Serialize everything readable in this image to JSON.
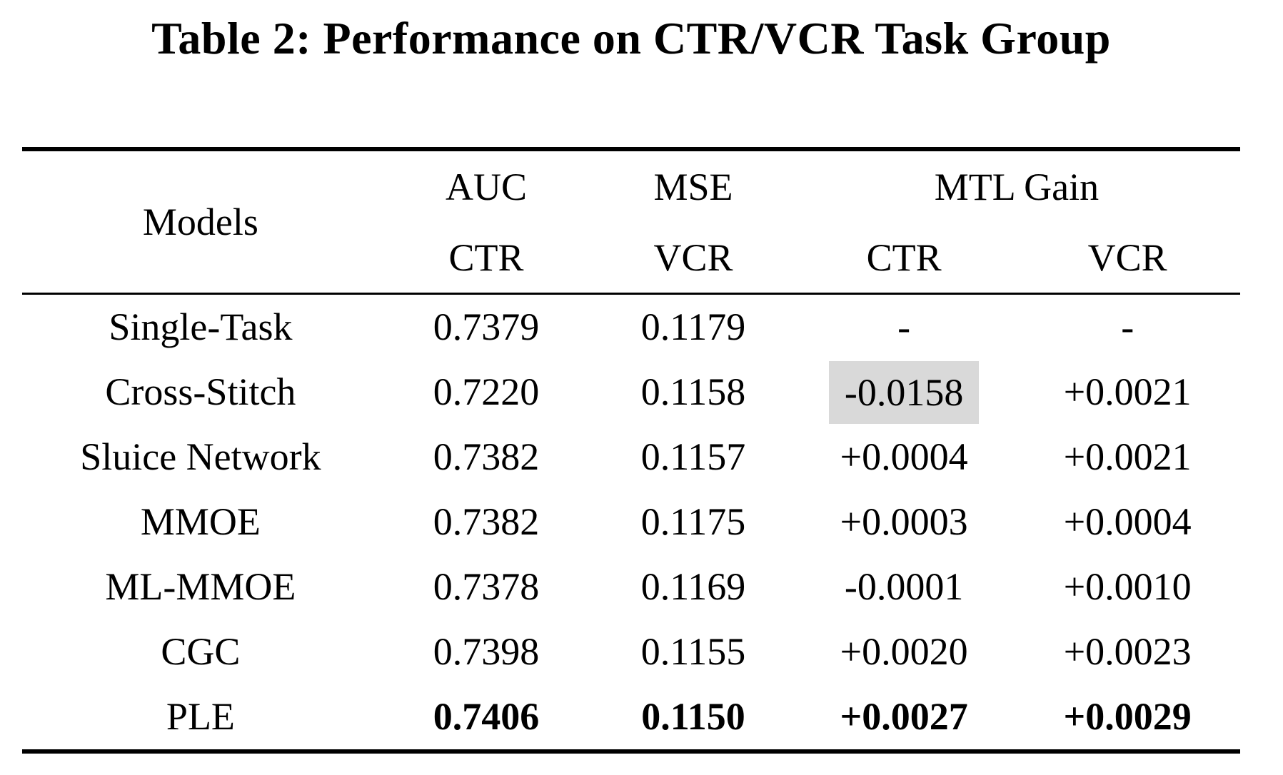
{
  "title": "Table 2: Performance on CTR/VCR Task Group",
  "colors": {
    "text": "#000000",
    "background": "#ffffff",
    "highlight": "#d9d9d9"
  },
  "table": {
    "header": {
      "models": "Models",
      "auc": "AUC",
      "mse": "MSE",
      "mtl_gain": "MTL Gain",
      "auc_sub": "CTR",
      "mse_sub": "VCR",
      "mtl_ctr_sub": "CTR",
      "mtl_vcr_sub": "VCR"
    },
    "rows": [
      {
        "model": "Single-Task",
        "auc_ctr": "0.7379",
        "mse_vcr": "0.1179",
        "mtl_ctr": "-",
        "mtl_vcr": "-"
      },
      {
        "model": "Cross-Stitch",
        "auc_ctr": "0.7220",
        "mse_vcr": "0.1158",
        "mtl_ctr": "-0.0158",
        "mtl_vcr": "+0.0021"
      },
      {
        "model": "Sluice Network",
        "auc_ctr": "0.7382",
        "mse_vcr": "0.1157",
        "mtl_ctr": "+0.0004",
        "mtl_vcr": "+0.0021"
      },
      {
        "model": "MMOE",
        "auc_ctr": "0.7382",
        "mse_vcr": "0.1175",
        "mtl_ctr": "+0.0003",
        "mtl_vcr": "+0.0004"
      },
      {
        "model": "ML-MMOE",
        "auc_ctr": "0.7378",
        "mse_vcr": "0.1169",
        "mtl_ctr": "-0.0001",
        "mtl_vcr": "+0.0010"
      },
      {
        "model": "CGC",
        "auc_ctr": "0.7398",
        "mse_vcr": "0.1155",
        "mtl_ctr": "+0.0020",
        "mtl_vcr": "+0.0023"
      },
      {
        "model": "PLE",
        "auc_ctr": "0.7406",
        "mse_vcr": "0.1150",
        "mtl_ctr": "+0.0027",
        "mtl_vcr": "+0.0029"
      }
    ]
  }
}
